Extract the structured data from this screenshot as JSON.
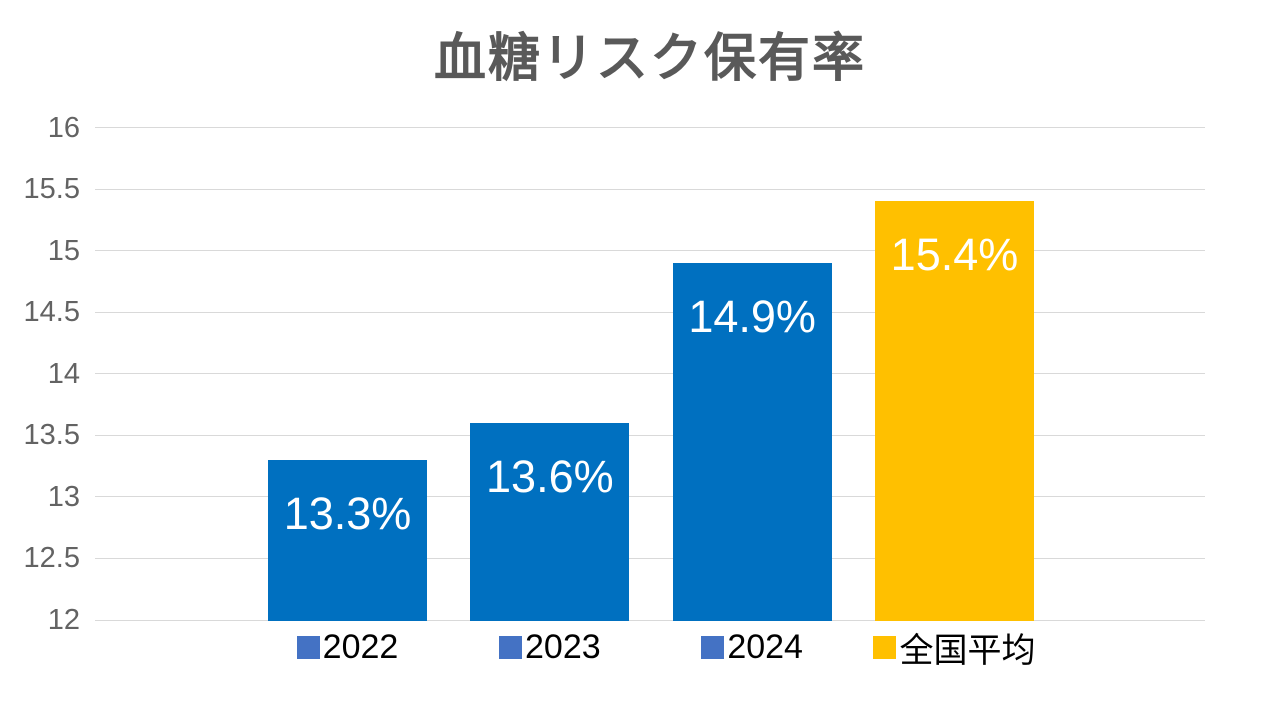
{
  "chart_data": {
    "type": "bar",
    "title": "血糖リスク保有率",
    "categories": [
      "2022",
      "2023",
      "2024",
      "全国平均"
    ],
    "values": [
      13.3,
      13.6,
      14.9,
      15.4
    ],
    "value_labels": [
      "13.3%",
      "13.6%",
      "14.9%",
      "15.4%"
    ],
    "ylim": [
      12,
      16
    ],
    "ytick_step": 0.5,
    "yticks": [
      "16",
      "15.5",
      "15",
      "14.5",
      "14",
      "13.5",
      "13",
      "12.5",
      "12"
    ],
    "grid": true,
    "legend_position": "bottom",
    "xlabel": "",
    "ylabel": "",
    "bar_colors": [
      "#0070C0",
      "#0070C0",
      "#0070C0",
      "#FFC000"
    ],
    "legend_marker_colors": [
      "#4472C4",
      "#4472C4",
      "#4472C4",
      "#FFC000"
    ]
  },
  "colors": {
    "bar_blue": "#0070C0",
    "bar_gold": "#FFC000",
    "legend_blue": "#4472C4",
    "gridline": "#D9D9D9",
    "title_text": "#595959",
    "tick_text": "#636363",
    "legend_text": "#000000",
    "value_label_text": "#FFFFFF",
    "background": "#FFFFFF"
  }
}
